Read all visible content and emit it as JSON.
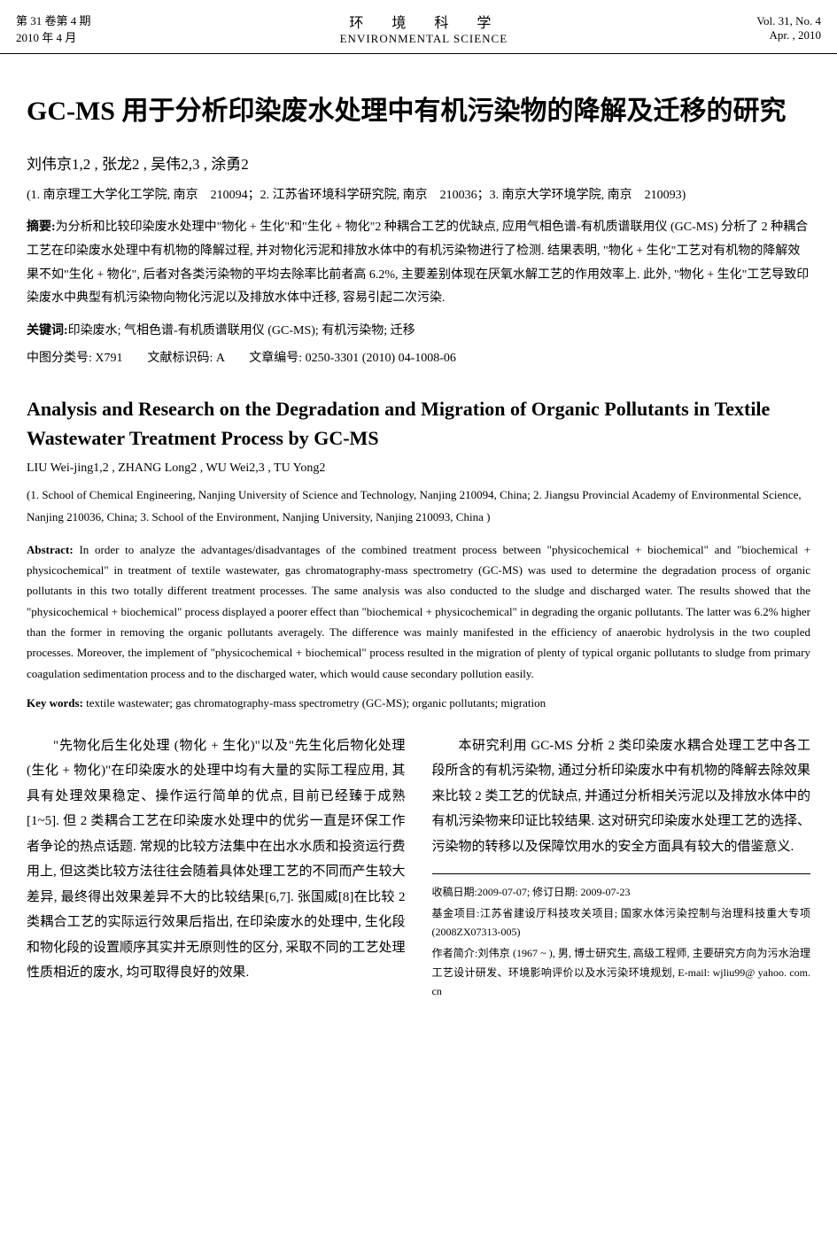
{
  "header": {
    "vol_issue_cn": "第 31 卷第 4 期",
    "date_cn": "2010 年 4 月",
    "journal_cn": "环　境　科　学",
    "journal_en": "ENVIRONMENTAL SCIENCE",
    "vol_en": "Vol. 31, No. 4",
    "date_en": "Apr. , 2010"
  },
  "paper": {
    "title_cn": "GC-MS 用于分析印染废水处理中有机污染物的降解及迁移的研究",
    "authors_cn": "刘伟京1,2 , 张龙2 , 吴伟2,3 , 涂勇2",
    "affiliation_cn": "(1. 南京理工大学化工学院, 南京　210094；2. 江苏省环境科学研究院, 南京　210036；3. 南京大学环境学院, 南京　210093)",
    "abstract_cn_label": "摘要:",
    "abstract_cn": "为分析和比较印染废水处理中\"物化 + 生化\"和\"生化 + 物化\"2 种耦合工艺的优缺点, 应用气相色谱-有机质谱联用仪 (GC-MS) 分析了 2 种耦合工艺在印染废水处理中有机物的降解过程, 并对物化污泥和排放水体中的有机污染物进行了检测. 结果表明, \"物化 + 生化\"工艺对有机物的降解效果不如\"生化 + 物化\", 后者对各类污染物的平均去除率比前者高 6.2%, 主要差别体现在厌氧水解工艺的作用效率上. 此外, \"物化 + 生化\"工艺导致印染废水中典型有机污染物向物化污泥以及排放水体中迁移, 容易引起二次污染.",
    "keywords_cn_label": "关键词:",
    "keywords_cn": "印染废水; 气相色谱-有机质谱联用仪 (GC-MS); 有机污染物; 迁移",
    "classification": "中图分类号: X791　　文献标识码: A　　文章编号: 0250-3301 (2010) 04-1008-06",
    "title_en": "Analysis and Research on the Degradation and Migration of Organic Pollutants in Textile Wastewater Treatment Process by GC-MS",
    "authors_en": "LIU Wei-jing1,2 ,  ZHANG Long2 ,  WU Wei2,3 ,  TU Yong2",
    "affiliation_en": "(1. School of Chemical Engineering, Nanjing University of Science and Technology, Nanjing 210094, China; 2. Jiangsu Provincial Academy of Environmental Science, Nanjing 210036, China; 3. School of the Environment, Nanjing University, Nanjing 210093, China )",
    "abstract_en_label": "Abstract:",
    "abstract_en": "In order to analyze the advantages/disadvantages of the combined treatment process between \"physicochemical + biochemical\" and \"biochemical + physicochemical\" in treatment of textile wastewater, gas chromatography-mass spectrometry (GC-MS) was used to determine the degradation process of organic pollutants in this two totally different treatment processes. The same analysis was also conducted to the sludge and discharged water. The results showed that the \"physicochemical + biochemical\" process displayed a poorer effect than \"biochemical + physicochemical\" in degrading the organic pollutants. The latter was 6.2% higher than the former in removing the organic pollutants averagely. The difference was mainly manifested in the efficiency of anaerobic hydrolysis in the two coupled processes. Moreover, the implement of \"physicochemical + biochemical\" process resulted in the migration of plenty of typical organic pollutants to sludge from primary coagulation sedimentation process and to the discharged water, which would cause secondary pollution easily.",
    "keywords_en_label": "Key words:",
    "keywords_en": "textile wastewater; gas chromatography-mass spectrometry (GC-MS); organic pollutants; migration"
  },
  "body": {
    "para1": "\"先物化后生化处理 (物化 + 生化)\"以及\"先生化后物化处理 (生化 + 物化)\"在印染废水的处理中均有大量的实际工程应用, 其具有处理效果稳定、操作运行简单的优点, 目前已经臻于成熟[1~5]. 但 2 类耦合工艺在印染废水处理中的优劣一直是环保工作者争论的热点话题. 常规的比较方法集中在出水水质和投资运行费用上, 但这类比较方法往往会随着具体处理工艺的不同而产生较大差异, 最终得出效果差异不大的比较结果[6,7]. 张国威[8]在比较 2 类耦合工艺的实际运行效果后指出, 在印染废水的处理中, 生化段和物化段的设置顺序其实并无原则性的区分, 采取不同的工艺处理性质相近的废水, 均可取得良好的效果.",
    "para2": "本研究利用 GC-MS 分析 2 类印染废水耦合处理工艺中各工段所含的有机污染物, 通过分析印染废水中有机物的降解去除效果来比较 2 类工艺的优缺点, 并通过分析相关污泥以及排放水体中的有机污染物来印证比较结果. 这对研究印染废水处理工艺的选择、污染物的转移以及保障饮用水的安全方面具有较大的借鉴意义."
  },
  "footnotes": {
    "received_label": "收稿日期:",
    "received": "2009-07-07; 修订日期: 2009-07-23",
    "fund_label": "基金项目:",
    "fund": "江苏省建设厅科技攻关项目; 国家水体污染控制与治理科技重大专项 (2008ZX07313-005)",
    "author_label": "作者简介:",
    "author": "刘伟京 (1967 ~ ), 男, 博士研究生, 高级工程师, 主要研究方向为污水治理工艺设计研发、环境影响评价以及水污染环境规划, E-mail: wjliu99@ yahoo. com. cn"
  }
}
